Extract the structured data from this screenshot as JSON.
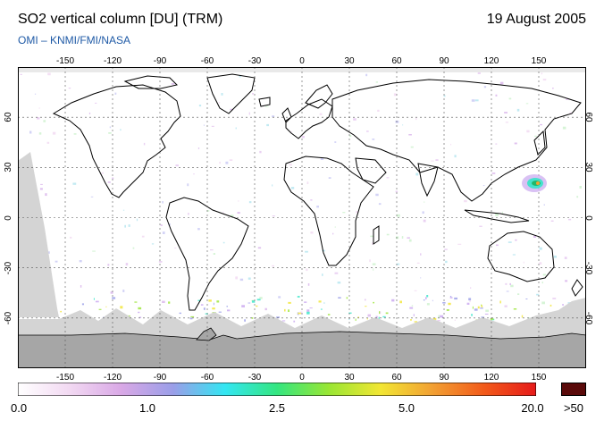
{
  "title": "SO2 vertical column [DU] (TRM)",
  "date": "19 August 2005",
  "subtitle": "OMI  –  KNMI/FMI/NASA",
  "lon_ticks": [
    "-150",
    "-120",
    "-90",
    "-60",
    "-30",
    "0",
    "30",
    "60",
    "90",
    "120",
    "150"
  ],
  "lon_values": [
    -150,
    -120,
    -90,
    -60,
    -30,
    0,
    30,
    60,
    90,
    120,
    150
  ],
  "lat_ticks": [
    "60",
    "30",
    "0",
    "-30",
    "-60"
  ],
  "lat_values": [
    60,
    30,
    0,
    -30,
    -60
  ],
  "colorbar": {
    "labels": [
      "0.0",
      "1.0",
      "2.5",
      "5.0",
      "20.0"
    ],
    "overflow_label": ">50",
    "overflow_color": "#5a0a0a",
    "stops": [
      "#ffffff",
      "#f2d9f2",
      "#d9a8e6",
      "#9a9ee8",
      "#33e6f2",
      "#33e680",
      "#99e633",
      "#f2e633",
      "#f2a033",
      "#f25a1a",
      "#e61a1a"
    ]
  },
  "colors": {
    "no_data": "#d4d4d4",
    "antarctica": "#a6a6a6",
    "hotspot": "#1fb86b"
  }
}
